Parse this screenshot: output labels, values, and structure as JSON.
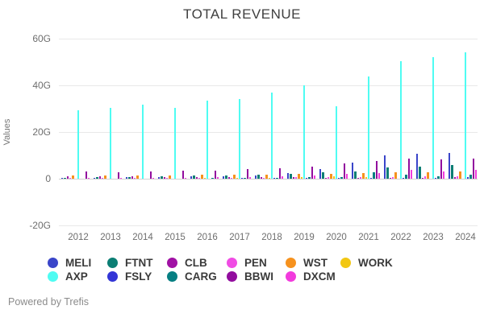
{
  "title": "TOTAL REVENUE",
  "footer": "Powered by Trefis",
  "chart_data": {
    "type": "bar",
    "title": "TOTAL REVENUE",
    "xlabel": "",
    "ylabel": "Values",
    "ylim": [
      -20,
      60
    ],
    "unit": "G",
    "grid": true,
    "legend_position": "bottom",
    "yticks": [
      {
        "label": "60G",
        "value": 60
      },
      {
        "label": "40G",
        "value": 40
      },
      {
        "label": "20G",
        "value": 20
      },
      {
        "label": "0",
        "value": 0
      },
      {
        "label": "-20G",
        "value": -20
      }
    ],
    "categories": [
      "2012",
      "2013",
      "2014",
      "2015",
      "2016",
      "2017",
      "2018",
      "2019",
      "2020",
      "2021",
      "2022",
      "2023",
      "2024"
    ],
    "series": [
      {
        "name": "MELI",
        "color": "#3a45c9",
        "values": [
          0.4,
          0.5,
          0.6,
          0.7,
          0.9,
          1.2,
          1.4,
          2.3,
          4.0,
          6.8,
          10.0,
          10.6,
          10.9
        ]
      },
      {
        "name": "FTNT",
        "color": "#0b7e74",
        "values": [
          0.5,
          0.6,
          0.8,
          1.0,
          1.3,
          1.5,
          1.8,
          2.2,
          2.6,
          3.1,
          4.7,
          5.1,
          6.0
        ]
      },
      {
        "name": "CLB",
        "color": "#a011a4",
        "values": [
          1.0,
          1.1,
          1.1,
          0.8,
          0.6,
          0.65,
          0.7,
          0.67,
          0.5,
          0.5,
          0.5,
          0.5,
          0.55
        ]
      },
      {
        "name": "PEN",
        "color": "#f04ce4",
        "values": [
          0.1,
          0.13,
          0.18,
          0.18,
          0.22,
          0.33,
          0.44,
          0.55,
          0.56,
          0.75,
          0.85,
          1.05,
          1.2
        ]
      },
      {
        "name": "WST",
        "color": "#f6921e",
        "values": [
          1.4,
          1.4,
          1.4,
          1.5,
          1.7,
          1.7,
          1.8,
          1.9,
          2.1,
          2.3,
          2.9,
          2.8,
          3.1
        ]
      },
      {
        "name": "WORK",
        "color": "#f2c713",
        "values": [
          0,
          0,
          0,
          0,
          0.1,
          0.2,
          0.4,
          0.6,
          0.9,
          0.6,
          0,
          0,
          0
        ]
      },
      {
        "name": "AXP",
        "color": "#4ffcf2",
        "values": [
          29.4,
          30.5,
          31.7,
          30.3,
          33.4,
          34.0,
          36.8,
          40.0,
          31.1,
          43.7,
          50.5,
          52.0,
          54.3
        ]
      },
      {
        "name": "FSLY",
        "color": "#3335d6",
        "values": [
          0,
          0,
          0,
          0,
          0,
          0.1,
          0.15,
          0.2,
          0.3,
          0.35,
          0.45,
          0.5,
          0.55
        ]
      },
      {
        "name": "CARG",
        "color": "#067f82",
        "values": [
          0,
          0,
          0,
          0,
          0.2,
          0.3,
          0.45,
          0.6,
          0.55,
          2.9,
          1.8,
          1.0,
          1.8
        ]
      },
      {
        "name": "BBWI",
        "color": "#920d9e",
        "values": [
          3.2,
          2.8,
          3.0,
          3.3,
          3.5,
          4.0,
          4.4,
          5.3,
          6.7,
          7.5,
          8.5,
          8.2,
          8.5
        ]
      },
      {
        "name": "DXCM",
        "color": "#f23bdd",
        "values": [
          0.1,
          0.16,
          0.26,
          0.4,
          0.6,
          0.7,
          1.0,
          1.5,
          2.0,
          2.4,
          3.7,
          3.1,
          3.7
        ]
      }
    ],
    "legend_rows": [
      [
        "MELI",
        "FTNT",
        "CLB",
        "PEN",
        "WST",
        "WORK"
      ],
      [
        "AXP",
        "FSLY",
        "CARG",
        "BBWI",
        "DXCM"
      ]
    ]
  }
}
